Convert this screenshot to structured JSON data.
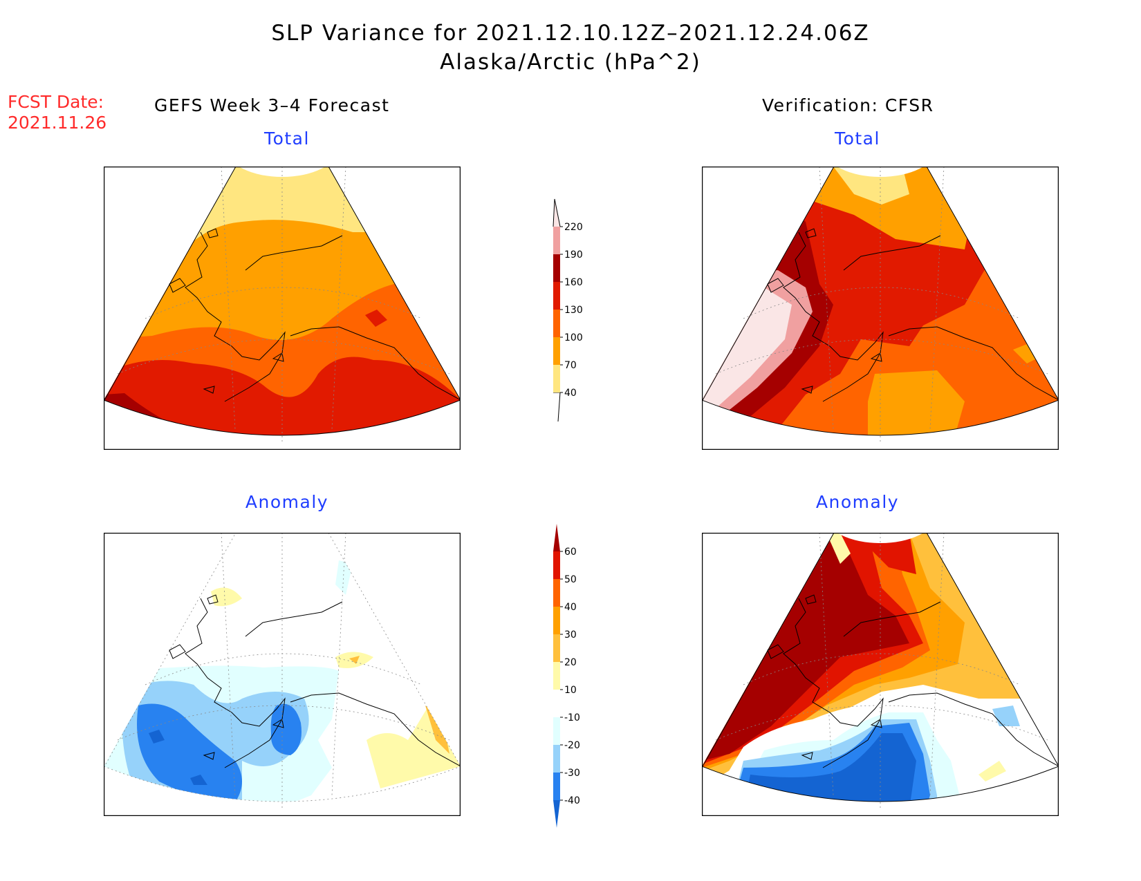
{
  "title": {
    "line1": "SLP Variance for 2021.12.10.12Z–2021.12.24.06Z",
    "line2": "Alaska/Arctic (hPa^2)"
  },
  "fcst_date": {
    "label": "FCST Date:",
    "value": "2021.11.26"
  },
  "columns": {
    "left": "GEFS Week 3–4 Forecast",
    "right": "Verification: CFSR"
  },
  "panels": {
    "forecast_total": "Total",
    "verification_total": "Total",
    "forecast_anomaly": "Anomaly",
    "verification_anomaly": "Anomaly"
  },
  "colorbars": {
    "total": {
      "labels": [
        "40",
        "70",
        "100",
        "130",
        "160",
        "190",
        "220"
      ],
      "colors": [
        "#ffe680",
        "#ffa000",
        "#ff6400",
        "#e11a00",
        "#a50000",
        "#f0a0a0",
        "#fae6e6"
      ]
    },
    "anomaly": {
      "labels": [
        "-40",
        "-30",
        "-20",
        "-10",
        "10",
        "20",
        "30",
        "40",
        "50",
        "60"
      ],
      "colors": [
        "#1464d2",
        "#2882f0",
        "#96d2fa",
        "#e1ffff",
        "#ffffff",
        "#fffaaa",
        "#ffc03c",
        "#ffa000",
        "#ff6400",
        "#e11400",
        "#a50000"
      ]
    }
  }
}
